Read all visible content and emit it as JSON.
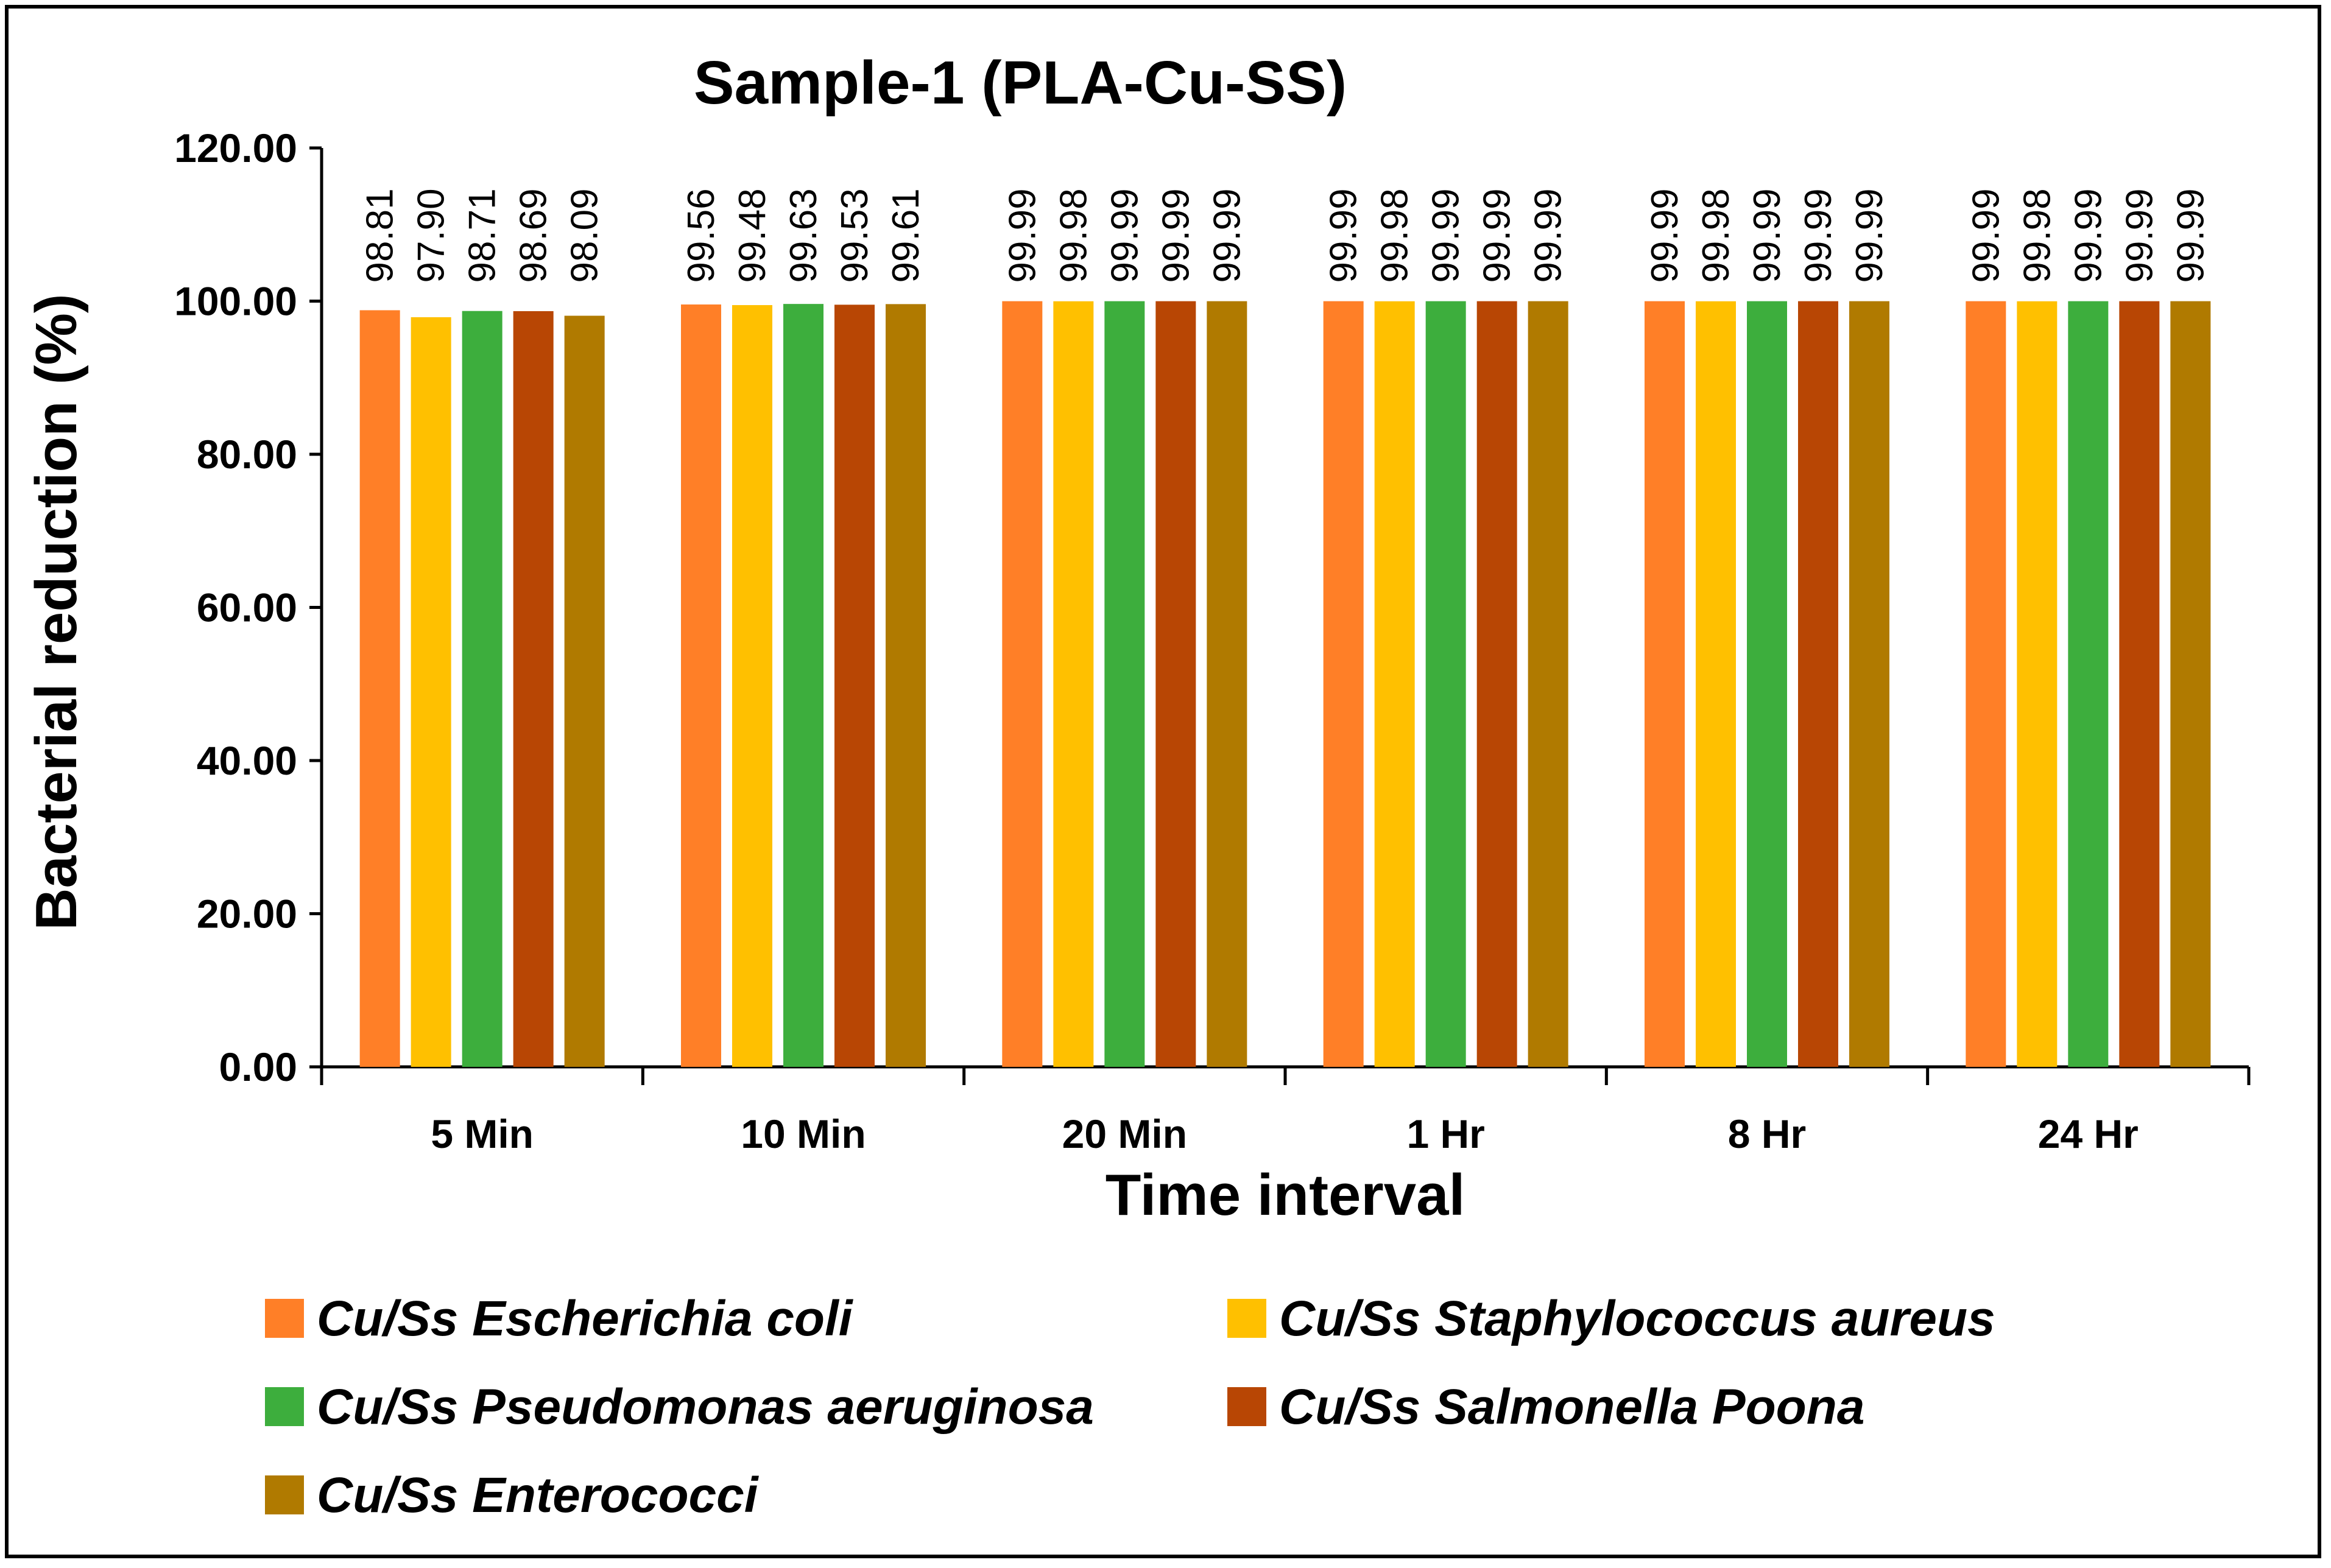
{
  "chart_data": {
    "type": "bar",
    "title": "Sample-1 (PLA-Cu-SS)",
    "xlabel": "Time interval",
    "ylabel": "Bacterial reduction (%)",
    "ylim": [
      0,
      120
    ],
    "yticks": [
      "0.00",
      "20.00",
      "40.00",
      "60.00",
      "80.00",
      "100.00",
      "120.00"
    ],
    "grid": false,
    "legend_position": "bottom",
    "categories": [
      "5 Min",
      "10 Min",
      "20 Min",
      "1 Hr",
      "8 Hr",
      "24 Hr"
    ],
    "series": [
      {
        "name": "Cu/Ss Escherichia coli",
        "color": "#FF7F27",
        "values": [
          98.81,
          99.56,
          99.99,
          99.99,
          99.99,
          99.99
        ],
        "labels": [
          "98.81",
          "99.56",
          "99.99",
          "99.99",
          "99.99",
          "99.99"
        ]
      },
      {
        "name": "Cu/Ss Staphylococcus aureus",
        "color": "#FFC000",
        "values": [
          97.9,
          99.48,
          99.98,
          99.98,
          99.98,
          99.98
        ],
        "labels": [
          "97.90",
          "99.48",
          "99.98",
          "99.98",
          "99.98",
          "99.98"
        ]
      },
      {
        "name": "Cu/Ss Pseudomonas aeruginosa",
        "color": "#3DAE3D",
        "values": [
          98.71,
          99.63,
          99.99,
          99.99,
          99.99,
          99.99
        ],
        "labels": [
          "98.71",
          "99.63",
          "99.99",
          "99.99",
          "99.99",
          "99.99"
        ]
      },
      {
        "name": "Cu/Ss Salmonella Poona",
        "color": "#B84604",
        "values": [
          98.69,
          99.53,
          99.99,
          99.99,
          99.99,
          99.99
        ],
        "labels": [
          "98.69",
          "99.53",
          "99.99",
          "99.99",
          "99.99",
          "99.99"
        ]
      },
      {
        "name": "Cu/Ss Enterococci",
        "color": "#B07A00",
        "values": [
          98.09,
          99.61,
          99.99,
          99.99,
          99.99,
          99.99
        ],
        "labels": [
          "98.09",
          "99.61",
          "99.99",
          "99.99",
          "99.99",
          "99.99"
        ]
      }
    ]
  }
}
